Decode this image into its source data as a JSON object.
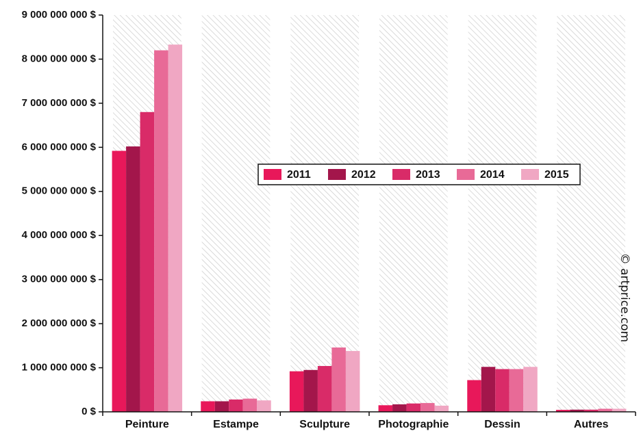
{
  "chart_data": {
    "type": "bar",
    "categories": [
      "Peinture",
      "Estampe",
      "Sculpture",
      "Photographie",
      "Dessin",
      "Autres"
    ],
    "series": [
      {
        "name": "2011",
        "color": "#e8185a",
        "values": [
          5920000000,
          240000000,
          920000000,
          150000000,
          720000000,
          45000000
        ]
      },
      {
        "name": "2012",
        "color": "#a3164b",
        "values": [
          6020000000,
          240000000,
          950000000,
          170000000,
          1020000000,
          50000000
        ]
      },
      {
        "name": "2013",
        "color": "#d92b68",
        "values": [
          6800000000,
          280000000,
          1040000000,
          190000000,
          970000000,
          50000000
        ]
      },
      {
        "name": "2014",
        "color": "#e86a97",
        "values": [
          8200000000,
          300000000,
          1460000000,
          200000000,
          970000000,
          70000000
        ]
      },
      {
        "name": "2015",
        "color": "#f0a7c3",
        "values": [
          8330000000,
          260000000,
          1380000000,
          140000000,
          1020000000,
          70000000
        ]
      }
    ],
    "y_ticks": [
      {
        "value": 0,
        "label": "0 $"
      },
      {
        "value": 1000000000,
        "label": "1 000 000 000 $"
      },
      {
        "value": 2000000000,
        "label": "2 000 000 000 $"
      },
      {
        "value": 3000000000,
        "label": "3 000 000 000 $"
      },
      {
        "value": 4000000000,
        "label": "4 000 000 000 $"
      },
      {
        "value": 5000000000,
        "label": "5 000 000 000 $"
      },
      {
        "value": 6000000000,
        "label": "6 000 000 000 $"
      },
      {
        "value": 7000000000,
        "label": "7 000 000 000 $"
      },
      {
        "value": 8000000000,
        "label": "8 000 000 000 $"
      },
      {
        "value": 9000000000,
        "label": "9 000 000 000 $"
      }
    ],
    "ylim": [
      0,
      9000000000
    ],
    "legend_position": "center-right",
    "background": "hatched-columns",
    "watermark": "© artprice.com"
  }
}
